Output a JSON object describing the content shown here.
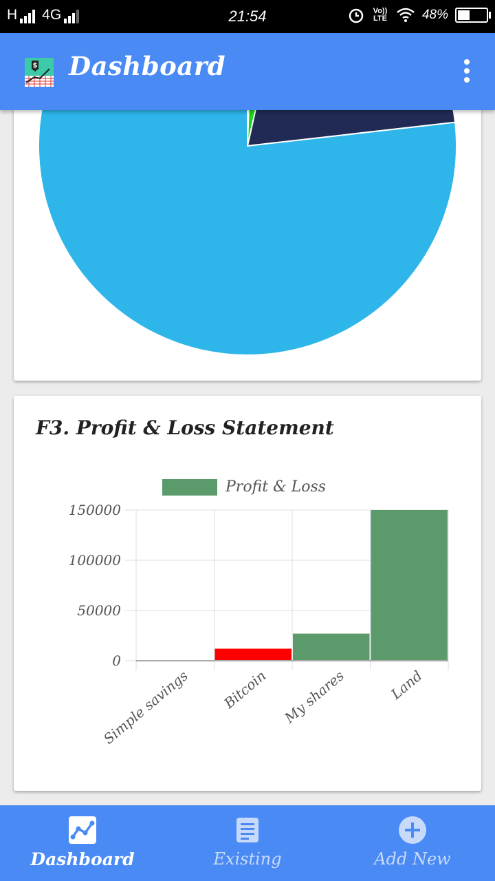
{
  "status_bar": {
    "network_left": "H",
    "network_type": "4G",
    "time": "21:54",
    "volte": "Vo)) LTE",
    "battery_text": "48%",
    "battery_level": 0.48
  },
  "app_bar": {
    "title": "Dashboard",
    "logo_icon": "dollar-chart-icon",
    "menu_icon": "more-vert-icon"
  },
  "pie_chart": {
    "type": "pie",
    "slices": [
      {
        "color": "#2eb5e9",
        "value": 76.8
      },
      {
        "color": "#212a55",
        "value": 19.7
      },
      {
        "color": "#18d718",
        "value": 3.0
      },
      {
        "color": "#8b2d0c",
        "value": 0.5
      }
    ]
  },
  "profit_card": {
    "title": "F3. Profit & Loss Statement"
  },
  "chart_data": {
    "type": "bar",
    "title": "",
    "categories": [
      "Simple savings",
      "Bitcoin",
      "My shares",
      "Land"
    ],
    "series": [
      {
        "name": "Profit & Loss",
        "values": [
          0,
          12000,
          27000,
          150000
        ],
        "colors": [
          "#5a9a6b",
          "#ff0000",
          "#5a9a6b",
          "#5a9a6b"
        ]
      }
    ],
    "yticks": [
      "150000",
      "100000",
      "50000",
      "0"
    ],
    "ylim": [
      0,
      150000
    ],
    "grid": true,
    "legend": "top"
  },
  "bottom_nav": {
    "items": [
      {
        "label": "Dashboard",
        "icon": "chart-line-icon",
        "active": true
      },
      {
        "label": "Existing",
        "icon": "document-icon",
        "active": false
      },
      {
        "label": "Add New",
        "icon": "add-circle-icon",
        "active": false
      }
    ]
  }
}
